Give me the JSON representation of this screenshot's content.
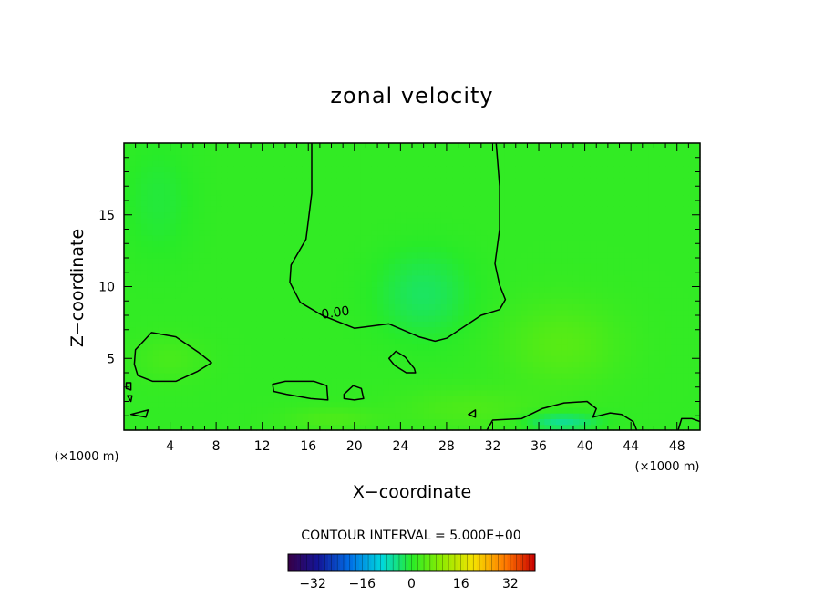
{
  "chart_data": {
    "type": "heatmap",
    "title": "zonal velocity",
    "xlabel": "X−coordinate",
    "ylabel": "Z−coordinate",
    "x_unit": "(×1000 m)",
    "y_unit": "(×1000 m)",
    "xlim": [
      0,
      50
    ],
    "ylim": [
      0,
      20
    ],
    "x_ticks": [
      4,
      8,
      12,
      16,
      20,
      24,
      28,
      32,
      36,
      40,
      44,
      48
    ],
    "y_ticks": [
      5,
      10,
      15
    ],
    "field_range": [
      -40,
      40
    ],
    "contour_interval_label": "CONTOUR INTERVAL =  5.000E+00",
    "contour_label": "0.00",
    "zero_contours": [
      {
        "name": "upper-zero-contour",
        "closed": false,
        "points": [
          [
            16.3,
            20
          ],
          [
            16.3,
            16.5
          ],
          [
            15.8,
            13.3
          ],
          [
            14.5,
            11.5
          ],
          [
            14.4,
            10.3
          ],
          [
            15.3,
            8.9
          ],
          [
            17.2,
            8
          ],
          [
            20,
            7.1
          ],
          [
            23,
            7.4
          ],
          [
            25.6,
            6.5
          ],
          [
            27,
            6.2
          ],
          [
            28,
            6.4
          ],
          [
            29.5,
            7.2
          ],
          [
            31,
            8
          ],
          [
            32.6,
            8.4
          ],
          [
            33.1,
            9.1
          ],
          [
            32.6,
            10.1
          ],
          [
            32.2,
            11.6
          ],
          [
            32.6,
            14
          ],
          [
            32.6,
            17
          ],
          [
            32.3,
            20
          ]
        ]
      },
      {
        "name": "left-eddy-contour",
        "closed": true,
        "points": [
          [
            1,
            5.6
          ],
          [
            2.4,
            6.8
          ],
          [
            4.5,
            6.5
          ],
          [
            6.5,
            5.4
          ],
          [
            7.6,
            4.7
          ],
          [
            6.4,
            4.1
          ],
          [
            4.5,
            3.4
          ],
          [
            2.5,
            3.4
          ],
          [
            1.2,
            3.8
          ],
          [
            0.9,
            4.6
          ]
        ]
      },
      {
        "name": "lobe-14-contour",
        "closed": true,
        "points": [
          [
            12.9,
            3.2
          ],
          [
            14,
            3.4
          ],
          [
            16.5,
            3.4
          ],
          [
            17.6,
            3.1
          ],
          [
            17.7,
            2.1
          ],
          [
            16.2,
            2.2
          ],
          [
            14.1,
            2.5
          ],
          [
            13,
            2.7
          ]
        ]
      },
      {
        "name": "lobe-20-contour",
        "closed": true,
        "points": [
          [
            19.1,
            2.5
          ],
          [
            19.9,
            3.1
          ],
          [
            20.6,
            2.9
          ],
          [
            20.8,
            2.2
          ],
          [
            20,
            2.1
          ],
          [
            19.1,
            2.2
          ]
        ]
      },
      {
        "name": "lobe-23-contour",
        "closed": true,
        "points": [
          [
            23,
            5
          ],
          [
            23.6,
            5.5
          ],
          [
            24.4,
            5.1
          ],
          [
            25.2,
            4.3
          ],
          [
            25.3,
            4
          ],
          [
            24.5,
            4
          ],
          [
            23.5,
            4.5
          ]
        ]
      },
      {
        "name": "bottom-right-contour",
        "closed": false,
        "points": [
          [
            31.5,
            0
          ],
          [
            32,
            0.7
          ],
          [
            34.5,
            0.8
          ],
          [
            36.3,
            1.5
          ],
          [
            38.2,
            1.9
          ],
          [
            40.2,
            2
          ],
          [
            41,
            1.5
          ],
          [
            40.7,
            0.9
          ],
          [
            42.2,
            1.2
          ],
          [
            43.2,
            1.1
          ],
          [
            44.2,
            0.6
          ],
          [
            44.5,
            0
          ]
        ]
      },
      {
        "name": "far-right-contour",
        "closed": false,
        "points": [
          [
            48.1,
            0
          ],
          [
            48.4,
            0.8
          ],
          [
            49.3,
            0.8
          ],
          [
            50,
            0.6
          ]
        ]
      },
      {
        "name": "edge-blob-1-contour",
        "closed": true,
        "points": [
          [
            0.2,
            3.3
          ],
          [
            0.6,
            3.3
          ],
          [
            0.6,
            2.8
          ],
          [
            0.2,
            2.9
          ]
        ]
      },
      {
        "name": "edge-blob-2-contour",
        "closed": true,
        "points": [
          [
            0.3,
            2.4
          ],
          [
            0.7,
            2.4
          ],
          [
            0.6,
            2
          ]
        ]
      },
      {
        "name": "edge-blob-3-contour",
        "closed": true,
        "points": [
          [
            0.6,
            1.1
          ],
          [
            2.1,
            1.4
          ],
          [
            1.9,
            0.9
          ]
        ]
      },
      {
        "name": "small-blob-30-contour",
        "closed": true,
        "points": [
          [
            29.9,
            1.1
          ],
          [
            30.5,
            1.4
          ],
          [
            30.5,
            0.9
          ]
        ]
      }
    ],
    "anomalies": [
      {
        "x": 26,
        "z": 9.5,
        "value": -4,
        "sx": 4,
        "sz": 3
      },
      {
        "x": 38,
        "z": 6,
        "value": 3.5,
        "sx": 5,
        "sz": 3
      },
      {
        "x": 30,
        "z": 1.5,
        "value": 2.5,
        "sx": 6,
        "sz": 1.5
      },
      {
        "x": 18,
        "z": 0.8,
        "value": 2.5,
        "sx": 4,
        "sz": 0.8
      },
      {
        "x": 38,
        "z": 0.6,
        "value": -7,
        "sx": 3,
        "sz": 0.6
      },
      {
        "x": 4,
        "z": 5,
        "value": 2,
        "sx": 3,
        "sz": 1.5
      },
      {
        "x": 3,
        "z": 16,
        "value": -2,
        "sx": 3,
        "sz": 4
      }
    ],
    "colorbar": {
      "range": [
        -40,
        40
      ],
      "ticks": [
        -32,
        -16,
        0,
        16,
        32
      ],
      "tick_labels": [
        "−32",
        "−16",
        "0",
        "16",
        "32"
      ]
    }
  }
}
